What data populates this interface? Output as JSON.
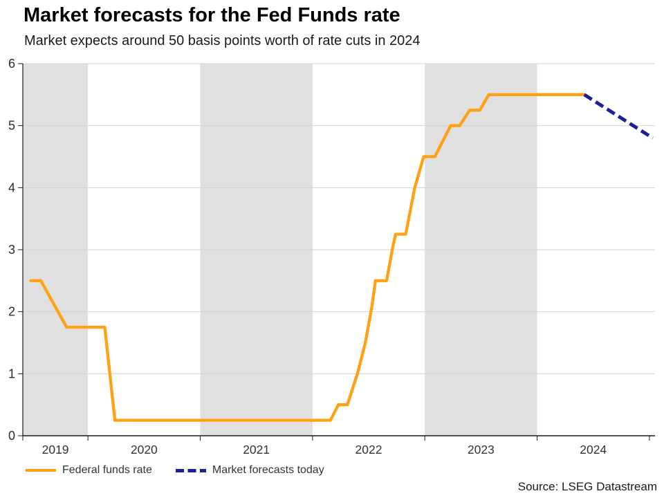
{
  "chart_data": {
    "type": "line",
    "title": "Market forecasts for the Fed Funds rate",
    "subtitle": "Market expects around 50 basis points worth of rate cuts in 2024",
    "source": "Source: LSEG Datastream",
    "ylabel": "",
    "xlabel": "",
    "ylim": [
      0,
      6
    ],
    "x_range_years": [
      2019.42,
      2025.05
    ],
    "y_tick_labels": [
      "0",
      "1",
      "2",
      "3",
      "4",
      "5",
      "6"
    ],
    "x_tick_labels": [
      "2019",
      "2020",
      "2021",
      "2022",
      "2023",
      "2024"
    ],
    "grid": true,
    "legend_position": "bottom-left",
    "year_band_shading": {
      "shaded_years": [
        2019,
        2021,
        2023
      ],
      "color": "#E0E0E0"
    },
    "colors": {
      "gridline": "#d2d2d2",
      "axis": "#1a1a1a",
      "tick_label": "#2b2b2b"
    },
    "series": [
      {
        "name": "Federal funds rate",
        "style": "solid",
        "color": "#FFA113",
        "points": [
          [
            2019.49,
            2.5
          ],
          [
            2019.58,
            2.5
          ],
          [
            2019.81,
            1.75
          ],
          [
            2020.15,
            1.75
          ],
          [
            2020.24,
            0.25
          ],
          [
            2022.16,
            0.25
          ],
          [
            2022.23,
            0.5
          ],
          [
            2022.31,
            0.5
          ],
          [
            2022.4,
            1.0
          ],
          [
            2022.47,
            1.5
          ],
          [
            2022.53,
            2.1
          ],
          [
            2022.56,
            2.5
          ],
          [
            2022.66,
            2.5
          ],
          [
            2022.71,
            3.0
          ],
          [
            2022.74,
            3.25
          ],
          [
            2022.83,
            3.25
          ],
          [
            2022.91,
            4.0
          ],
          [
            2022.99,
            4.5
          ],
          [
            2023.09,
            4.5
          ],
          [
            2023.23,
            5.0
          ],
          [
            2023.31,
            5.0
          ],
          [
            2023.4,
            5.25
          ],
          [
            2023.49,
            5.25
          ],
          [
            2023.57,
            5.5
          ],
          [
            2024.42,
            5.5
          ]
        ]
      },
      {
        "name": "Market forecasts today",
        "style": "dashed",
        "color": "#1E1E96",
        "points": [
          [
            2024.42,
            5.5
          ],
          [
            2025.03,
            4.8
          ]
        ]
      }
    ]
  }
}
